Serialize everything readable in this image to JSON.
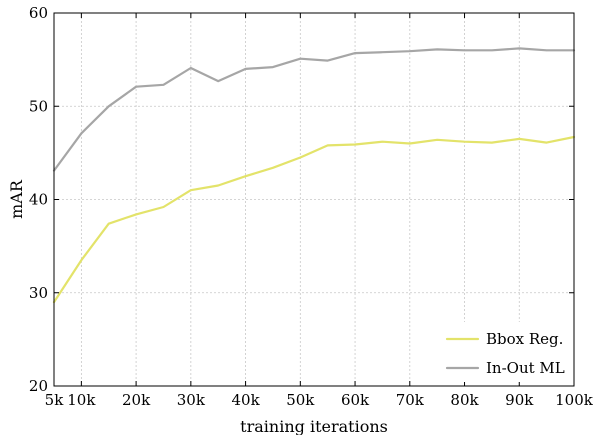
{
  "chart_data": {
    "type": "line",
    "xlabel": "training iterations",
    "ylabel": "mAR",
    "x": [
      5,
      10,
      15,
      20,
      25,
      30,
      35,
      40,
      45,
      50,
      55,
      60,
      65,
      70,
      75,
      80,
      85,
      90,
      95,
      100
    ],
    "xticks": [
      5,
      10,
      20,
      30,
      40,
      50,
      60,
      70,
      80,
      90,
      100
    ],
    "xtick_labels": [
      "5k",
      "10k",
      "20k",
      "30k",
      "40k",
      "50k",
      "60k",
      "70k",
      "80k",
      "90k",
      "100k"
    ],
    "xlim": [
      5,
      100
    ],
    "ylim": [
      20,
      60
    ],
    "yticks": [
      20,
      30,
      40,
      50,
      60
    ],
    "ytick_labels": [
      "20",
      "30",
      "40",
      "50",
      "60"
    ],
    "grid": true,
    "legend_position": "bottom-right",
    "series": [
      {
        "name": "Bbox Reg.",
        "color": "#e3e36a",
        "values": [
          29.0,
          33.5,
          37.4,
          38.4,
          39.2,
          41.0,
          41.5,
          42.5,
          43.4,
          44.5,
          45.8,
          45.9,
          46.2,
          46.0,
          46.4,
          46.2,
          46.1,
          46.5,
          46.1,
          46.7
        ]
      },
      {
        "name": "In-Out ML",
        "color": "#a6a6a6",
        "values": [
          43.1,
          47.1,
          50.0,
          52.1,
          52.3,
          54.1,
          52.7,
          54.0,
          54.2,
          55.1,
          54.9,
          55.7,
          55.8,
          55.9,
          56.1,
          56.0,
          56.0,
          56.2,
          56.0,
          56.0
        ]
      }
    ]
  }
}
